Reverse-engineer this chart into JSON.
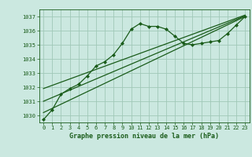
{
  "title": "Graphe pression niveau de la mer (hPa)",
  "background_color": "#cbe8e0",
  "grid_color": "#a0c8b8",
  "line_color": "#1a5c1a",
  "marker_color": "#1a5c1a",
  "xlim": [
    -0.5,
    23.5
  ],
  "ylim": [
    1029.5,
    1037.5
  ],
  "yticks": [
    1030,
    1031,
    1032,
    1033,
    1034,
    1035,
    1036,
    1037
  ],
  "xticks": [
    0,
    1,
    2,
    3,
    4,
    5,
    6,
    7,
    8,
    9,
    10,
    11,
    12,
    13,
    14,
    15,
    16,
    17,
    18,
    19,
    20,
    21,
    22,
    23
  ],
  "main_series": {
    "x": [
      0,
      1,
      2,
      3,
      4,
      5,
      6,
      7,
      8,
      9,
      10,
      11,
      12,
      13,
      14,
      15,
      16,
      17,
      18,
      19,
      20,
      21,
      22,
      23
    ],
    "y": [
      1029.7,
      1030.4,
      1031.5,
      1031.9,
      1032.2,
      1032.8,
      1033.5,
      1033.8,
      1034.3,
      1035.1,
      1036.1,
      1036.5,
      1036.3,
      1036.3,
      1036.1,
      1035.6,
      1035.1,
      1035.0,
      1035.1,
      1035.2,
      1035.3,
      1035.8,
      1036.4,
      1037.0
    ]
  },
  "trend_lines": [
    {
      "x": [
        0,
        23
      ],
      "y": [
        1030.2,
        1037.0
      ]
    },
    {
      "x": [
        0,
        23
      ],
      "y": [
        1031.0,
        1037.05
      ]
    },
    {
      "x": [
        0,
        23
      ],
      "y": [
        1031.9,
        1037.1
      ]
    }
  ],
  "tick_fontsize": 5.0,
  "label_fontsize": 6.0,
  "linewidth": 0.9,
  "markersize": 2.0
}
